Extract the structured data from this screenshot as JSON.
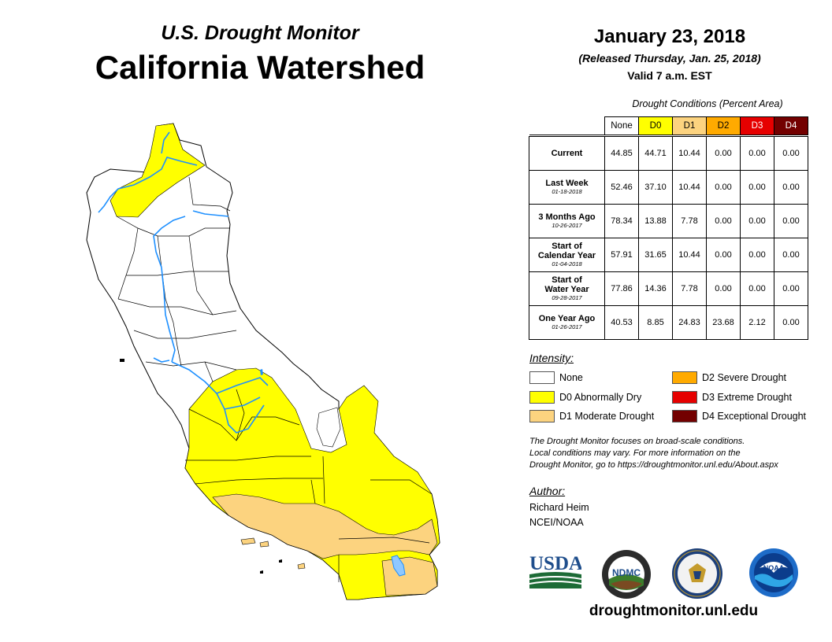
{
  "header": {
    "subtitle": "U.S. Drought Monitor",
    "title": "California Watershed"
  },
  "info": {
    "date": "January 23, 2018",
    "released": "(Released Thursday, Jan. 25, 2018)",
    "valid": "Valid 7 a.m. EST"
  },
  "table": {
    "caption": "Drought Conditions (Percent Area)",
    "columns": [
      "None",
      "D0",
      "D1",
      "D2",
      "D3",
      "D4"
    ],
    "rows": [
      {
        "label": "Current",
        "label2": "",
        "date": "",
        "values": [
          "44.85",
          "44.71",
          "10.44",
          "0.00",
          "0.00",
          "0.00"
        ]
      },
      {
        "label": "Last Week",
        "label2": "",
        "date": "01-18-2018",
        "values": [
          "52.46",
          "37.10",
          "10.44",
          "0.00",
          "0.00",
          "0.00"
        ]
      },
      {
        "label": "3 Months Ago",
        "label2": "",
        "date": "10-26-2017",
        "values": [
          "78.34",
          "13.88",
          "7.78",
          "0.00",
          "0.00",
          "0.00"
        ]
      },
      {
        "label": "Start of",
        "label2": "Calendar Year",
        "date": "01-04-2018",
        "values": [
          "57.91",
          "31.65",
          "10.44",
          "0.00",
          "0.00",
          "0.00"
        ]
      },
      {
        "label": "Start of",
        "label2": "Water Year",
        "date": "09-28-2017",
        "values": [
          "77.86",
          "14.36",
          "7.78",
          "0.00",
          "0.00",
          "0.00"
        ]
      },
      {
        "label": "One Year Ago",
        "label2": "",
        "date": "01-26-2017",
        "values": [
          "40.53",
          "8.85",
          "24.83",
          "23.68",
          "2.12",
          "0.00"
        ]
      }
    ]
  },
  "legend": {
    "title": "Intensity:",
    "items": [
      {
        "label": "None",
        "color": "#ffffff"
      },
      {
        "label": "D0 Abnormally Dry",
        "color": "#ffff00"
      },
      {
        "label": "D1 Moderate Drought",
        "color": "#fcd37f"
      },
      {
        "label": "D2 Severe Drought",
        "color": "#ffaa00"
      },
      {
        "label": "D3 Extreme Drought",
        "color": "#e60000"
      },
      {
        "label": "D4 Exceptional Drought",
        "color": "#730000"
      }
    ]
  },
  "note": {
    "line1": "The Drought Monitor focuses on broad-scale conditions.",
    "line2": "Local conditions may vary. For more information on the",
    "line3": "Drought Monitor, go to https://droughtmonitor.unl.edu/About.aspx"
  },
  "author": {
    "title": "Author:",
    "name": "Richard Heim",
    "org": "NCEI/NOAA"
  },
  "logos": {
    "usda": "USDA",
    "ndmc": "NDMC",
    "noaa": "NOAA"
  },
  "website": "droughtmonitor.unl.edu",
  "colors": {
    "none": "#ffffff",
    "d0": "#ffff00",
    "d1": "#fcd37f",
    "water": "#1e90ff"
  }
}
